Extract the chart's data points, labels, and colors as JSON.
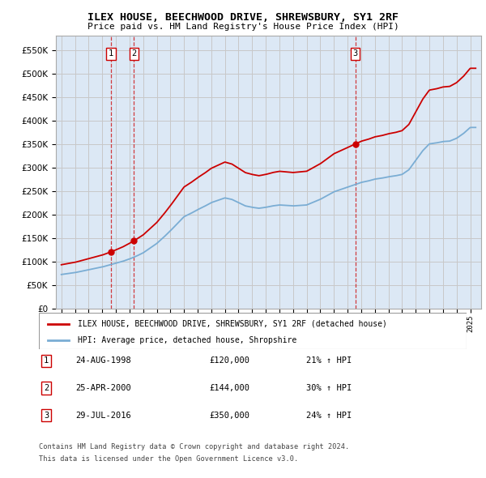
{
  "title": "ILEX HOUSE, BEECHWOOD DRIVE, SHREWSBURY, SY1 2RF",
  "subtitle": "Price paid vs. HM Land Registry's House Price Index (HPI)",
  "ylim": [
    0,
    580000
  ],
  "yticks": [
    0,
    50000,
    100000,
    150000,
    200000,
    250000,
    300000,
    350000,
    400000,
    450000,
    500000,
    550000
  ],
  "xlim_start": 1994.6,
  "xlim_end": 2025.8,
  "sale1_date": 1998.644,
  "sale1_price": 120000,
  "sale2_date": 2000.319,
  "sale2_price": 144000,
  "sale3_date": 2016.572,
  "sale3_price": 350000,
  "legend_red": "ILEX HOUSE, BEECHWOOD DRIVE, SHREWSBURY, SY1 2RF (detached house)",
  "legend_blue": "HPI: Average price, detached house, Shropshire",
  "table_rows": [
    {
      "num": "1",
      "date": "24-AUG-1998",
      "price": "£120,000",
      "hpi": "21% ↑ HPI"
    },
    {
      "num": "2",
      "date": "25-APR-2000",
      "price": "£144,000",
      "hpi": "30% ↑ HPI"
    },
    {
      "num": "3",
      "date": "29-JUL-2016",
      "price": "£350,000",
      "hpi": "24% ↑ HPI"
    }
  ],
  "footer1": "Contains HM Land Registry data © Crown copyright and database right 2024.",
  "footer2": "This data is licensed under the Open Government Licence v3.0.",
  "red_color": "#cc0000",
  "blue_color": "#7aadd4",
  "grid_color": "#c8c8c8",
  "background_color": "#dce8f5",
  "years_hpi": [
    1995.0,
    1995.5,
    1996.0,
    1996.5,
    1997.0,
    1997.5,
    1998.0,
    1998.5,
    1999.0,
    1999.5,
    2000.0,
    2000.5,
    2001.0,
    2001.5,
    2002.0,
    2002.5,
    2003.0,
    2003.5,
    2004.0,
    2004.5,
    2005.0,
    2005.5,
    2006.0,
    2006.5,
    2007.0,
    2007.5,
    2008.0,
    2008.5,
    2009.0,
    2009.5,
    2010.0,
    2010.5,
    2011.0,
    2011.5,
    2012.0,
    2012.5,
    2013.0,
    2013.5,
    2014.0,
    2014.5,
    2015.0,
    2015.5,
    2016.0,
    2016.5,
    2017.0,
    2017.5,
    2018.0,
    2018.5,
    2019.0,
    2019.5,
    2020.0,
    2020.5,
    2021.0,
    2021.5,
    2022.0,
    2022.5,
    2023.0,
    2023.5,
    2024.0,
    2024.5,
    2025.0
  ],
  "hpi_vals": [
    72000,
    74000,
    76000,
    79000,
    82000,
    85000,
    88000,
    92000,
    96000,
    100000,
    105000,
    111000,
    118000,
    128000,
    138000,
    151000,
    165000,
    180000,
    195000,
    202000,
    210000,
    217000,
    225000,
    230000,
    235000,
    232000,
    225000,
    218000,
    215000,
    213000,
    215000,
    218000,
    220000,
    219000,
    218000,
    219000,
    220000,
    226000,
    232000,
    240000,
    248000,
    253000,
    258000,
    263000,
    268000,
    271000,
    275000,
    277000,
    280000,
    282000,
    285000,
    295000,
    315000,
    335000,
    350000,
    352000,
    355000,
    356000,
    362000,
    372000,
    385000
  ]
}
